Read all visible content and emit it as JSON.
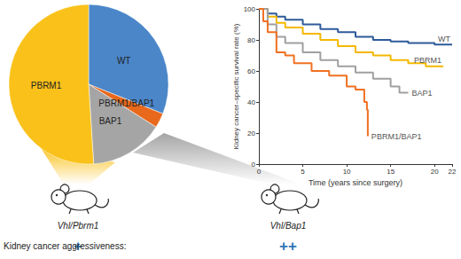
{
  "chart_data": [
    {
      "type": "pie",
      "categories": [
        "WT",
        "PBRM1/BAP1",
        "BAP1",
        "PBRM1"
      ],
      "values": [
        31,
        3,
        15,
        51
      ],
      "colors": [
        "#4a86c8",
        "#e8691c",
        "#a5a5a5",
        "#f9c11a"
      ]
    },
    {
      "type": "line",
      "xlabel": "Time (years since surgery)",
      "ylabel": "Kidney cancer–specific survival rate (%)",
      "xlim": [
        0,
        22
      ],
      "xticks": [
        0,
        5,
        10,
        15,
        20
      ],
      "ylim": [
        0,
        100
      ],
      "yticks": [
        0,
        20,
        40,
        60,
        80,
        100
      ],
      "grid": false,
      "line_style": "step",
      "series": [
        {
          "name": "WT",
          "color": "#2e5b9a",
          "x": [
            0,
            1,
            2,
            3,
            5,
            7,
            9,
            11,
            13,
            15,
            17,
            20,
            22
          ],
          "values": [
            100,
            97,
            95,
            93,
            90,
            87,
            85,
            82,
            80,
            79,
            78,
            77,
            77
          ]
        },
        {
          "name": "PBRM1",
          "color": "#f5b800",
          "x": [
            0,
            1,
            2,
            3,
            5,
            7,
            9,
            11,
            13,
            15,
            17,
            19,
            21
          ],
          "values": [
            100,
            95,
            91,
            88,
            84,
            80,
            76,
            72,
            70,
            67,
            65,
            63,
            63
          ]
        },
        {
          "name": "BAP1",
          "color": "#a0a0a0",
          "x": [
            0,
            1,
            2,
            3,
            5,
            7,
            9,
            11,
            13,
            15,
            16,
            17
          ],
          "values": [
            100,
            90,
            82,
            78,
            72,
            67,
            63,
            59,
            55,
            50,
            46,
            46
          ]
        },
        {
          "name": "PBRM1/BAP1",
          "color": "#f07020",
          "x": [
            0,
            0.5,
            1,
            2,
            3,
            4,
            6,
            8,
            10,
            11,
            12,
            12.3,
            12.4
          ],
          "values": [
            100,
            92,
            85,
            72,
            70,
            65,
            60,
            57,
            50,
            48,
            40,
            35,
            18
          ]
        }
      ]
    }
  ],
  "diagram": {
    "mice": [
      {
        "label": "Vhl/Pbrm1",
        "aggressiveness": "+",
        "color": "#f9c11a"
      },
      {
        "label": "Vhl/Bap1",
        "aggressiveness": "++",
        "color": "#a5a5a5"
      }
    ],
    "row_label": "Kidney cancer aggressiveness:"
  }
}
